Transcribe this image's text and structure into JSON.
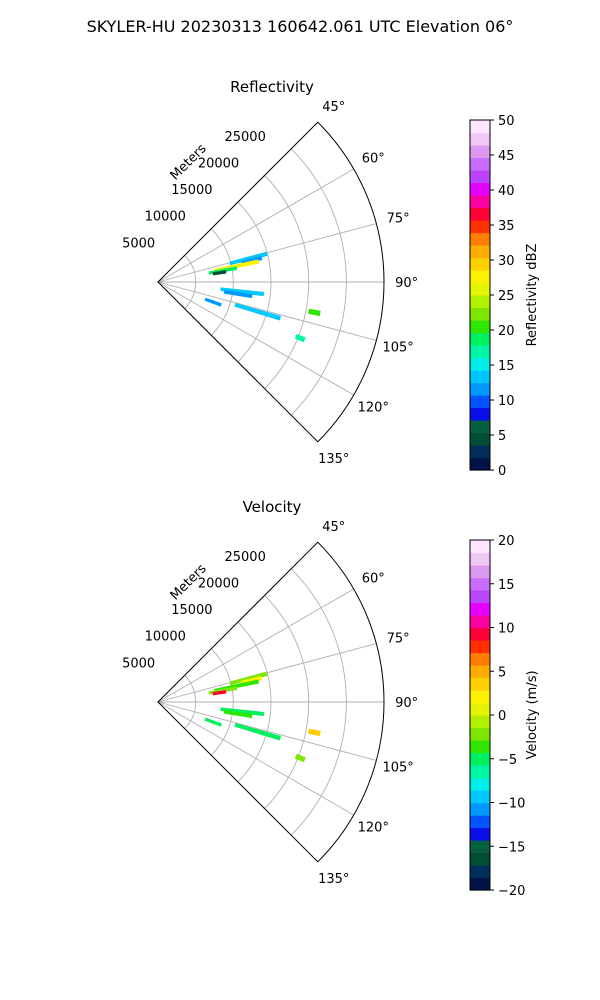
{
  "figure": {
    "title": "SKYLER-HU  20230313  160642.061 UTC Elevation 06°"
  },
  "chart_data": [
    {
      "type": "polar-sector",
      "title": "Reflectivity",
      "radial_label": "Meters",
      "theta_range_deg": [
        45,
        135
      ],
      "theta_ticks_deg": [
        45,
        60,
        75,
        90,
        105,
        120,
        135
      ],
      "theta_tick_labels": [
        "45°",
        "60°",
        "75°",
        "90°",
        "105°",
        "120°",
        "135°"
      ],
      "r_range_m": [
        0,
        30000
      ],
      "r_ticks_m": [
        5000,
        10000,
        15000,
        20000,
        25000
      ],
      "r_tick_labels": [
        "5000",
        "10000",
        "15000",
        "20000",
        "25000"
      ],
      "grid": true,
      "echo_regions": [
        {
          "az_deg": 75.5,
          "r_start_m": 10000,
          "r_end_m": 14800,
          "value": 14
        },
        {
          "az_deg": 77.0,
          "r_start_m": 11500,
          "r_end_m": 14000,
          "value": 12
        },
        {
          "az_deg": 78.5,
          "r_start_m": 7800,
          "r_end_m": 13500,
          "value": 28
        },
        {
          "az_deg": 80.0,
          "r_start_m": 7000,
          "r_end_m": 10500,
          "value": 18
        },
        {
          "az_deg": 81.5,
          "r_start_m": 7500,
          "r_end_m": 9000,
          "value": 5
        },
        {
          "az_deg": 96.5,
          "r_start_m": 8500,
          "r_end_m": 14000,
          "value": 14
        },
        {
          "az_deg": 98.5,
          "r_start_m": 9000,
          "r_end_m": 12500,
          "value": 12
        },
        {
          "az_deg": 101.0,
          "r_start_m": 20500,
          "r_end_m": 21800,
          "value": 20
        },
        {
          "az_deg": 106.5,
          "r_start_m": 10800,
          "r_end_m": 16800,
          "value": 14
        },
        {
          "az_deg": 110.0,
          "r_start_m": 6800,
          "r_end_m": 8800,
          "value": 11
        },
        {
          "az_deg": 111.5,
          "r_start_m": 19800,
          "r_end_m": 20800,
          "value": 17
        }
      ],
      "colorbar": {
        "label": "Reflectivity dBZ",
        "range": [
          0,
          50
        ],
        "ticks": [
          0,
          5,
          10,
          15,
          20,
          25,
          30,
          35,
          40,
          45,
          50
        ],
        "tick_labels": [
          "0",
          "5",
          "10",
          "15",
          "20",
          "25",
          "30",
          "35",
          "40",
          "45",
          "50"
        ],
        "colors": [
          "#00134a",
          "#002e5a",
          "#024d36",
          "#065f3f",
          "#0a0fe6",
          "#0055ff",
          "#0099ff",
          "#00c8ff",
          "#00f0e8",
          "#00f5a5",
          "#00f060",
          "#2ee600",
          "#7ce600",
          "#b0f000",
          "#e3f500",
          "#fff200",
          "#ffd000",
          "#ffac00",
          "#ff7d00",
          "#ff3000",
          "#ff0036",
          "#ff00a0",
          "#e600ff",
          "#bb44ff",
          "#c86cff",
          "#dd99f0",
          "#f0c8f5",
          "#ffe6ff"
        ]
      }
    },
    {
      "type": "polar-sector",
      "title": "Velocity",
      "radial_label": "Meters",
      "theta_range_deg": [
        45,
        135
      ],
      "theta_ticks_deg": [
        45,
        60,
        75,
        90,
        105,
        120,
        135
      ],
      "theta_tick_labels": [
        "45°",
        "60°",
        "75°",
        "90°",
        "105°",
        "120°",
        "135°"
      ],
      "r_range_m": [
        0,
        30000
      ],
      "r_ticks_m": [
        5000,
        10000,
        15000,
        20000,
        25000
      ],
      "r_tick_labels": [
        "5000",
        "10000",
        "15000",
        "20000",
        "25000"
      ],
      "grid": true,
      "echo_regions": [
        {
          "az_deg": 75.5,
          "r_start_m": 10000,
          "r_end_m": 14800,
          "value": -2
        },
        {
          "az_deg": 77.0,
          "r_start_m": 11500,
          "r_end_m": 14000,
          "value": 2
        },
        {
          "az_deg": 78.5,
          "r_start_m": 7800,
          "r_end_m": 13500,
          "value": -3
        },
        {
          "az_deg": 80.0,
          "r_start_m": 7000,
          "r_end_m": 10500,
          "value": -2
        },
        {
          "az_deg": 81.5,
          "r_start_m": 7500,
          "r_end_m": 9000,
          "value": 9
        },
        {
          "az_deg": 96.5,
          "r_start_m": 8500,
          "r_end_m": 14000,
          "value": -5
        },
        {
          "az_deg": 98.5,
          "r_start_m": 9000,
          "r_end_m": 12500,
          "value": -4
        },
        {
          "az_deg": 101.0,
          "r_start_m": 20500,
          "r_end_m": 21800,
          "value": 3
        },
        {
          "az_deg": 106.5,
          "r_start_m": 10800,
          "r_end_m": 16800,
          "value": -5
        },
        {
          "az_deg": 110.0,
          "r_start_m": 6800,
          "r_end_m": 8800,
          "value": -5
        },
        {
          "az_deg": 111.5,
          "r_start_m": 19800,
          "r_end_m": 20800,
          "value": -2
        }
      ],
      "colorbar": {
        "label": "Velocity (m/s)",
        "range": [
          -20,
          20
        ],
        "ticks": [
          -20,
          -15,
          -10,
          -5,
          0,
          5,
          10,
          15,
          20
        ],
        "tick_labels": [
          "−20",
          "−15",
          "−10",
          "−5",
          "0",
          "5",
          "10",
          "15",
          "20"
        ],
        "colors": [
          "#00134a",
          "#002e5a",
          "#024d36",
          "#065f3f",
          "#0a0fe6",
          "#0055ff",
          "#0099ff",
          "#00c8ff",
          "#00f0e8",
          "#00f5a5",
          "#00f060",
          "#2ee600",
          "#7ce600",
          "#b0f000",
          "#e3f500",
          "#fff200",
          "#ffd000",
          "#ffac00",
          "#ff7d00",
          "#ff3000",
          "#ff0036",
          "#ff00a0",
          "#e600ff",
          "#bb44ff",
          "#c86cff",
          "#dd99f0",
          "#f0c8f5",
          "#ffe6ff"
        ]
      }
    }
  ]
}
